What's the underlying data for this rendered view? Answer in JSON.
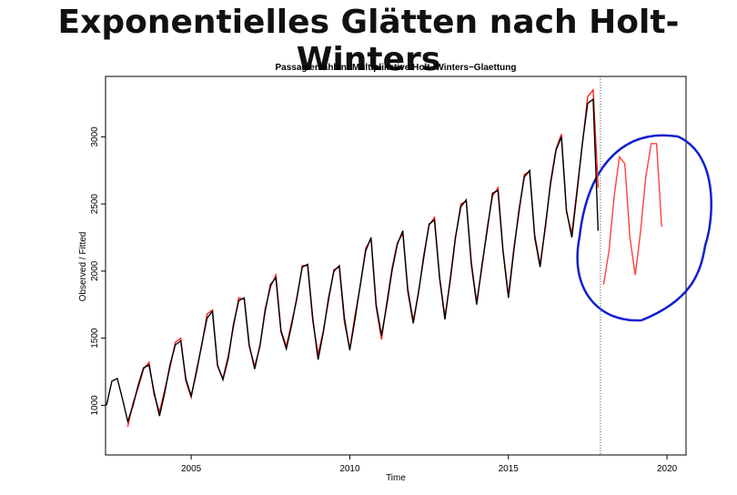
{
  "header": {
    "title": "Exponentielles Glätten nach Holt-Winters"
  },
  "chart_data": {
    "type": "line",
    "title": "Passagierzahlen: Multiplikative Holt−Winters−Glaettung",
    "x_label": "Time",
    "y_label": "Observed / Fitted",
    "xlim": [
      2002.3,
      2020.6
    ],
    "xticks": [
      2005,
      2010,
      2015,
      2020
    ],
    "ylim": [
      630,
      3450
    ],
    "yticks": [
      1000,
      1500,
      2000,
      2500,
      3000
    ],
    "forecast_start": 2017.9,
    "x": [
      2002.33,
      2002.5,
      2002.67,
      2002.83,
      2003,
      2003.17,
      2003.33,
      2003.5,
      2003.67,
      2003.83,
      2004,
      2004.17,
      2004.33,
      2004.5,
      2004.67,
      2004.83,
      2005,
      2005.17,
      2005.33,
      2005.5,
      2005.67,
      2005.83,
      2006,
      2006.17,
      2006.33,
      2006.5,
      2006.67,
      2006.83,
      2007,
      2007.17,
      2007.33,
      2007.5,
      2007.67,
      2007.83,
      2008,
      2008.17,
      2008.33,
      2008.5,
      2008.67,
      2008.83,
      2009,
      2009.17,
      2009.33,
      2009.5,
      2009.67,
      2009.83,
      2010,
      2010.17,
      2010.33,
      2010.5,
      2010.67,
      2010.83,
      2011,
      2011.17,
      2011.33,
      2011.5,
      2011.67,
      2011.83,
      2012,
      2012.17,
      2012.33,
      2012.5,
      2012.67,
      2012.83,
      2013,
      2013.17,
      2013.33,
      2013.5,
      2013.67,
      2013.83,
      2014,
      2014.17,
      2014.33,
      2014.5,
      2014.67,
      2014.83,
      2015,
      2015.17,
      2015.33,
      2015.5,
      2015.67,
      2015.83,
      2016,
      2016.17,
      2016.33,
      2016.5,
      2016.67,
      2016.83,
      2017,
      2017.17,
      2017.33,
      2017.5,
      2017.67,
      2017.83
    ],
    "series": [
      {
        "color": "#ff2020",
        "values": [
          null,
          null,
          null,
          null,
          840,
          1020,
          1130,
          1270,
          1320,
          1080,
          950,
          1120,
          1280,
          1470,
          1500,
          1180,
          1060,
          1270,
          1440,
          1680,
          1710,
          1290,
          1200,
          1370,
          1580,
          1800,
          1790,
          1440,
          1290,
          1440,
          1720,
          1880,
          1970,
          1560,
          1440,
          1620,
          1790,
          2040,
          2040,
          1630,
          1380,
          1560,
          1780,
          2010,
          2030,
          1620,
          1420,
          1680,
          1890,
          2170,
          2240,
          1730,
          1490,
          1770,
          2020,
          2210,
          2280,
          1870,
          1630,
          1840,
          2120,
          2340,
          2400,
          1960,
          1660,
          1930,
          2240,
          2500,
          2520,
          2070,
          1770,
          2030,
          2320,
          2560,
          2620,
          2160,
          1820,
          2170,
          2430,
          2720,
          2740,
          2270,
          2050,
          2330,
          2670,
          2910,
          3020,
          2440,
          2280,
          2620,
          2940,
          3300,
          3350,
          2620
        ]
      },
      {
        "color": "#000000",
        "values": [
          1000,
          1180,
          1200,
          1050,
          880,
          1000,
          1150,
          1280,
          1300,
          1100,
          920,
          1100,
          1300,
          1450,
          1480,
          1200,
          1070,
          1250,
          1450,
          1650,
          1700,
          1300,
          1190,
          1350,
          1600,
          1780,
          1800,
          1450,
          1270,
          1450,
          1700,
          1900,
          1950,
          1550,
          1420,
          1600,
          1800,
          2030,
          2050,
          1650,
          1340,
          1550,
          1800,
          2000,
          2040,
          1650,
          1410,
          1650,
          1900,
          2150,
          2250,
          1750,
          1520,
          1750,
          2000,
          2200,
          2300,
          1850,
          1610,
          1850,
          2100,
          2350,
          2380,
          1950,
          1640,
          1950,
          2250,
          2480,
          2530,
          2050,
          1750,
          2050,
          2300,
          2580,
          2600,
          2150,
          1800,
          2150,
          2450,
          2700,
          2750,
          2250,
          2030,
          2350,
          2650,
          2900,
          3000,
          2450,
          2250,
          2600,
          2950,
          3250,
          3280,
          2300
        ]
      },
      {
        "color": "#ff4040",
        "x": [
          2018,
          2018.17,
          2018.33,
          2018.5,
          2018.67,
          2018.83,
          2019,
          2019.17,
          2019.33,
          2019.5,
          2019.67,
          2019.83
        ],
        "values": [
          1900,
          2150,
          2550,
          2850,
          2800,
          2250,
          1970,
          2300,
          2700,
          2950,
          2950,
          2330
        ]
      }
    ]
  }
}
